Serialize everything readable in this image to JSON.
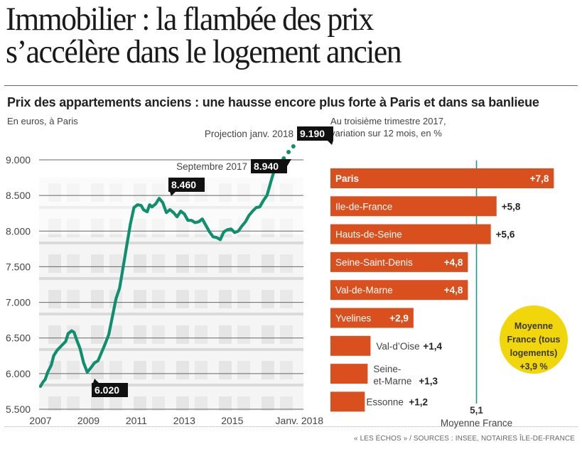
{
  "headline": [
    "Immobilier : la flambée des prix",
    "s’accélère dans le logement ancien"
  ],
  "subtitle": "Prix des appartements anciens : une hausse encore plus forte à Paris et dans sa banlieue",
  "source": "« LES ÉCHOS » / SOURCES : INSEE, NOTAIRES ÎLE-DE-FRANCE",
  "colors": {
    "line": "#0f8f6e",
    "bar": "#d9501e",
    "mean_line": "#1a9a8a",
    "circle": "#f2d60c",
    "callout_bg": "#111111",
    "grid": "#666666"
  },
  "chart_data": [
    {
      "type": "line",
      "title": "",
      "unit_note": "En euros, à Paris",
      "xlabel": "",
      "ylabel": "",
      "ylim": [
        5500,
        9000
      ],
      "xlim": [
        2007.0,
        2018.0
      ],
      "grid": true,
      "y_ticks": [
        9000,
        8500,
        8000,
        7500,
        7000,
        6500,
        6000,
        5500
      ],
      "y_tick_labels": [
        "9.000",
        "8.500",
        "8.000",
        "7.500",
        "7.000",
        "6.500",
        "6.000",
        "5.500"
      ],
      "x_ticks": [
        2007,
        2009,
        2011,
        2013,
        2015,
        2018
      ],
      "x_tick_labels": [
        "2007",
        "2009",
        "2011",
        "2013",
        "2015",
        "Janv. 2018"
      ],
      "series": [
        {
          "name": "Prix appartements anciens Paris",
          "style": "solid",
          "points": [
            [
              2007.0,
              5820
            ],
            [
              2007.1,
              5880
            ],
            [
              2007.2,
              5920
            ],
            [
              2007.3,
              6020
            ],
            [
              2007.45,
              6120
            ],
            [
              2007.55,
              6250
            ],
            [
              2007.7,
              6330
            ],
            [
              2007.9,
              6400
            ],
            [
              2008.05,
              6450
            ],
            [
              2008.15,
              6560
            ],
            [
              2008.3,
              6600
            ],
            [
              2008.4,
              6580
            ],
            [
              2008.5,
              6480
            ],
            [
              2008.65,
              6350
            ],
            [
              2008.8,
              6150
            ],
            [
              2008.95,
              6020
            ],
            [
              2009.1,
              6080
            ],
            [
              2009.25,
              6150
            ],
            [
              2009.4,
              6180
            ],
            [
              2009.55,
              6300
            ],
            [
              2009.7,
              6420
            ],
            [
              2009.85,
              6550
            ],
            [
              2010.0,
              6800
            ],
            [
              2010.15,
              7050
            ],
            [
              2010.3,
              7200
            ],
            [
              2010.45,
              7500
            ],
            [
              2010.6,
              7800
            ],
            [
              2010.75,
              8100
            ],
            [
              2010.9,
              8330
            ],
            [
              2011.05,
              8370
            ],
            [
              2011.2,
              8360
            ],
            [
              2011.3,
              8300
            ],
            [
              2011.45,
              8270
            ],
            [
              2011.55,
              8370
            ],
            [
              2011.65,
              8340
            ],
            [
              2011.8,
              8380
            ],
            [
              2011.95,
              8460
            ],
            [
              2012.1,
              8400
            ],
            [
              2012.25,
              8260
            ],
            [
              2012.4,
              8300
            ],
            [
              2012.55,
              8260
            ],
            [
              2012.7,
              8200
            ],
            [
              2012.85,
              8280
            ],
            [
              2013.0,
              8240
            ],
            [
              2013.15,
              8150
            ],
            [
              2013.3,
              8150
            ],
            [
              2013.45,
              8120
            ],
            [
              2013.6,
              8130
            ],
            [
              2013.75,
              8170
            ],
            [
              2013.9,
              8080
            ],
            [
              2014.05,
              7990
            ],
            [
              2014.2,
              7920
            ],
            [
              2014.35,
              7910
            ],
            [
              2014.5,
              7880
            ],
            [
              2014.65,
              7990
            ],
            [
              2014.8,
              8020
            ],
            [
              2014.95,
              8030
            ],
            [
              2015.1,
              7980
            ],
            [
              2015.25,
              8000
            ],
            [
              2015.4,
              8070
            ],
            [
              2015.55,
              8130
            ],
            [
              2015.7,
              8220
            ],
            [
              2015.85,
              8280
            ],
            [
              2016.0,
              8330
            ],
            [
              2016.15,
              8340
            ],
            [
              2016.3,
              8430
            ],
            [
              2016.45,
              8500
            ],
            [
              2016.6,
              8680
            ],
            [
              2016.75,
              8850
            ],
            [
              2016.9,
              8920
            ],
            [
              2017.0,
              8940
            ]
          ]
        },
        {
          "name": "Projection",
          "style": "dotted",
          "points": [
            [
              2017.0,
              8940
            ],
            [
              2017.15,
              9020
            ],
            [
              2017.35,
              9110
            ],
            [
              2017.55,
              9190
            ]
          ]
        }
      ],
      "annotations": [
        {
          "label": "8.460",
          "caption": "",
          "x": 2011.95,
          "y": 8460,
          "anchor": "top"
        },
        {
          "label": "6.020",
          "caption": "",
          "x": 2008.95,
          "y": 6020,
          "anchor": "bottom"
        },
        {
          "label": "8.940",
          "caption": "Septembre 2017",
          "x": 2017.0,
          "y": 8940,
          "anchor": "left"
        },
        {
          "label": "9.190",
          "caption": "Projection janv. 2018",
          "x": 2017.55,
          "y": 9190,
          "anchor": "top"
        }
      ]
    },
    {
      "type": "bar",
      "orientation": "horizontal",
      "title": "",
      "unit_note": "Au troisième trimestre 2017, variation sur 12 mois, en %",
      "categories": [
        "Paris",
        "Ile-de-France",
        "Hauts-de-Seine",
        "Seine-Saint-Denis",
        "Val-de-Marne",
        "Yvelines",
        "Val-d’Oise",
        "Seine-et-Marne",
        "Essonne"
      ],
      "values": [
        7.8,
        5.8,
        5.6,
        4.8,
        4.8,
        2.9,
        1.4,
        1.3,
        1.2
      ],
      "value_labels": [
        "+7,8",
        "+5,8",
        "+5,6",
        "+4,8",
        "+4,8",
        "+2,9",
        "+1,4",
        "+1,3",
        "+1,2"
      ],
      "xlim": [
        0,
        8
      ],
      "reference_line": {
        "value": 5.1,
        "label_value": "5,1",
        "label": "Moyenne France"
      },
      "callout_circle": {
        "lines": [
          "Moyenne",
          "France (tous",
          "logements)",
          "+3,9 %"
        ]
      }
    }
  ]
}
